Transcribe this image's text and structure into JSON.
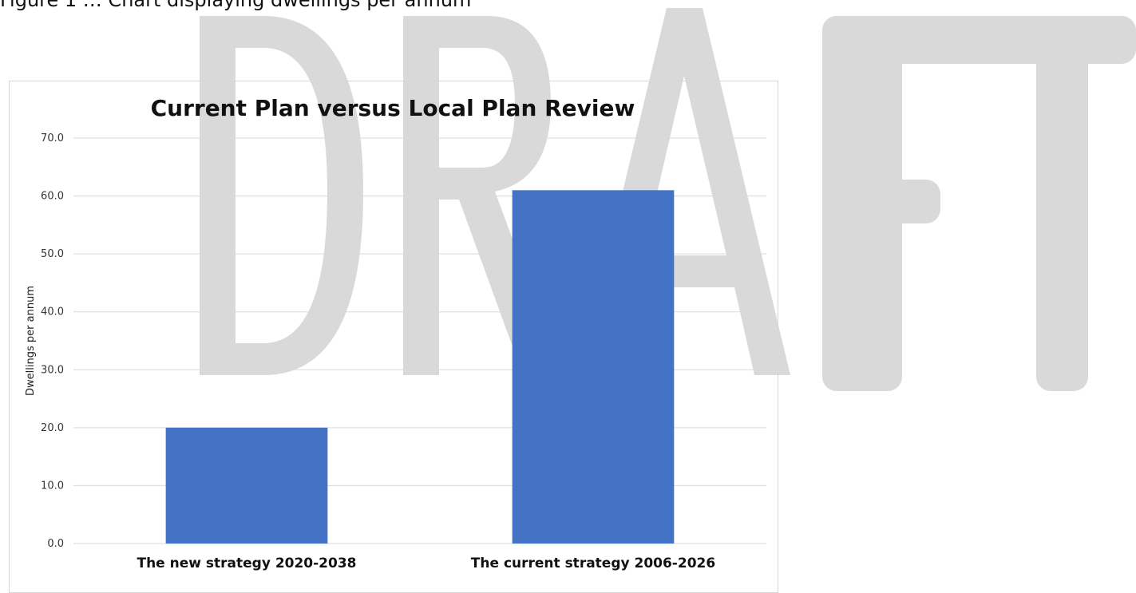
{
  "document": {
    "top_text_fragment": "Figure 1 … Chart displaying dwellings per annum"
  },
  "watermark": {
    "text": "DRAFT",
    "color": "#d9d9d9"
  },
  "chart_data": {
    "type": "bar",
    "title": "Current Plan versus Local Plan Review",
    "xlabel": "",
    "ylabel": "Dwellings per annum",
    "categories": [
      "The new strategy 2020-2038",
      "The current strategy 2006-2026"
    ],
    "values": [
      20.0,
      61.0
    ],
    "ylim": [
      0,
      70
    ],
    "yticks": [
      "0.0",
      "10.0",
      "20.0",
      "30.0",
      "40.0",
      "50.0",
      "60.0",
      "70.0"
    ],
    "grid": true,
    "legend": "none",
    "bar_color": "#4472c4",
    "grid_color": "#d9d9d9"
  }
}
